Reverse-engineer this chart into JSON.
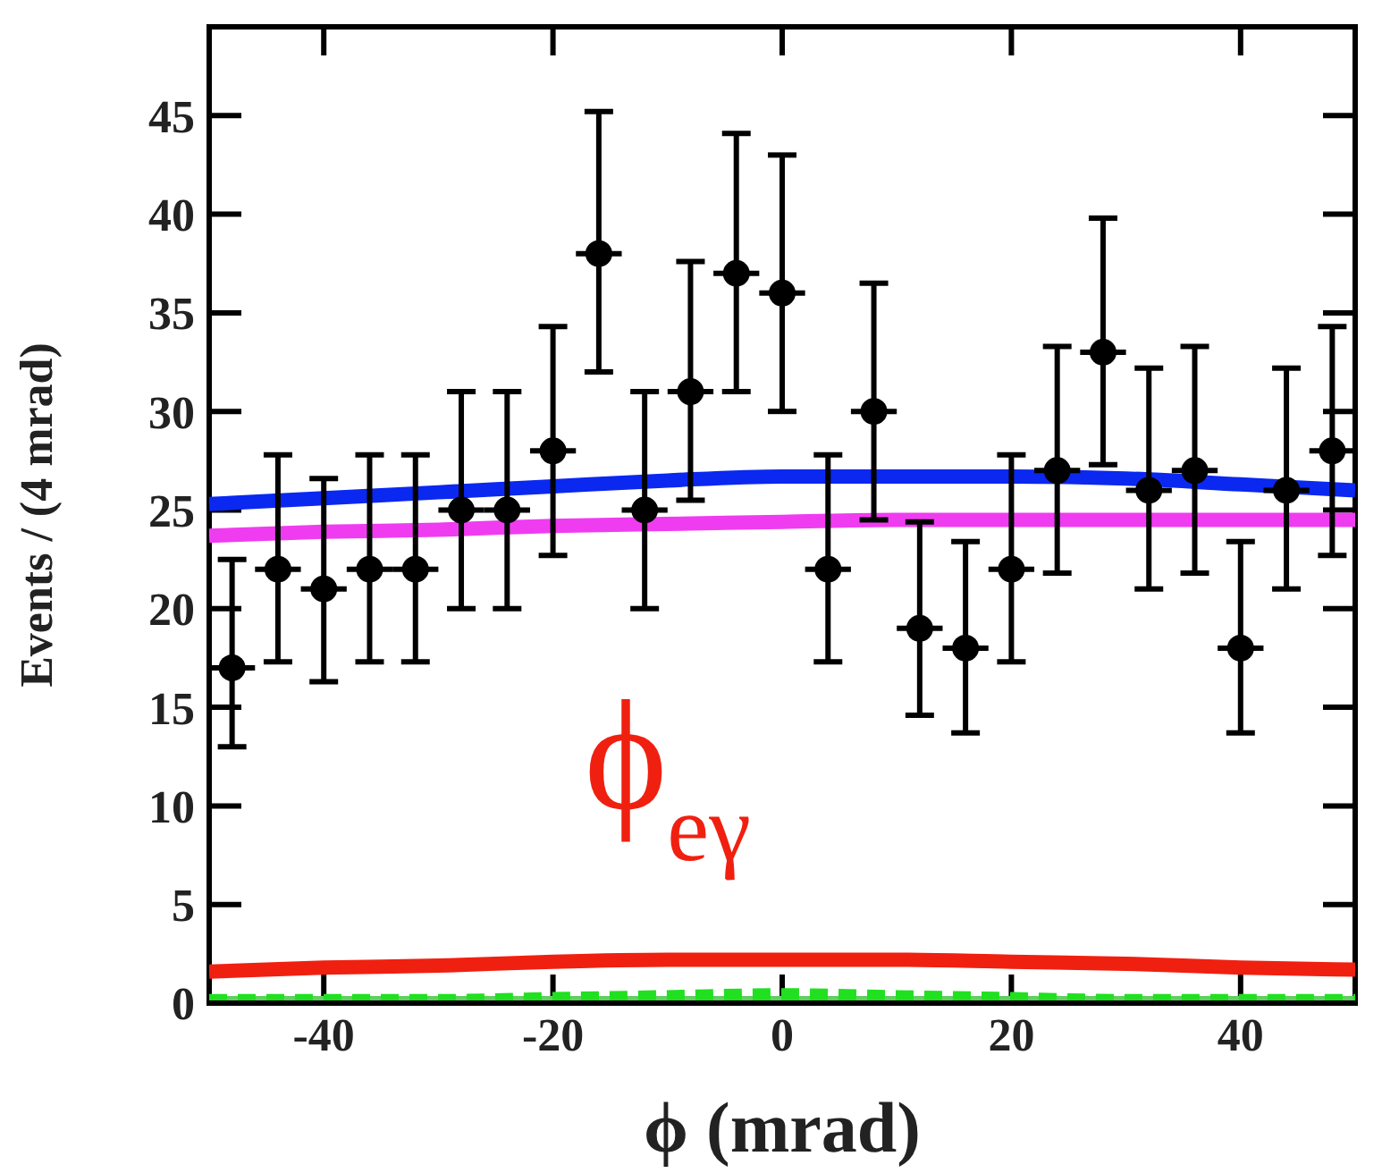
{
  "chart_data": {
    "type": "scatter",
    "xlabel": "ϕ (mrad)",
    "ylabel": "Events / (4 mrad)",
    "xlim": [
      -50,
      50
    ],
    "xticks": [
      -40,
      -20,
      0,
      20,
      40
    ],
    "ylim": [
      0,
      49.5
    ],
    "yticks": [
      0,
      5,
      10,
      15,
      20,
      25,
      30,
      35,
      40,
      45
    ],
    "annotations": [
      "ϕ$_{eγ}$"
    ],
    "series": [
      {
        "type": "line",
        "color": "#0a28f0",
        "x": [
          -50,
          -40,
          -30,
          -20,
          -10,
          0,
          10,
          20,
          30,
          40,
          50
        ],
        "values": [
          25.3,
          25.6,
          25.9,
          26.2,
          26.5,
          26.7,
          26.7,
          26.7,
          26.6,
          26.3,
          26.0
        ]
      },
      {
        "type": "line",
        "color": "#f03cf0",
        "x": [
          -50,
          -40,
          -30,
          -20,
          -10,
          0,
          10,
          20,
          30,
          40,
          50
        ],
        "values": [
          23.7,
          23.9,
          24.0,
          24.2,
          24.3,
          24.4,
          24.5,
          24.5,
          24.5,
          24.5,
          24.5
        ]
      },
      {
        "type": "line",
        "color": "#f02010",
        "x": [
          -50,
          -40,
          -30,
          -20,
          -10,
          0,
          10,
          20,
          30,
          40,
          50
        ],
        "values": [
          1.6,
          1.8,
          1.9,
          2.1,
          2.2,
          2.2,
          2.2,
          2.1,
          2.0,
          1.8,
          1.7
        ]
      },
      {
        "type": "line",
        "color": "#60d060",
        "x": [
          -50,
          -40,
          -30,
          -20,
          -10,
          0,
          10,
          20,
          30,
          40,
          50
        ],
        "values": [
          0,
          0,
          0,
          0,
          0,
          0,
          0,
          0,
          0,
          0,
          0
        ]
      },
      {
        "type": "line",
        "color": "#20e020",
        "line_style": "dashed",
        "x": [
          -50,
          -30,
          -20,
          -10,
          0,
          10,
          20,
          30,
          50
        ],
        "values": [
          0.1,
          0.1,
          0.2,
          0.3,
          0.4,
          0.3,
          0.2,
          0.1,
          0.1
        ]
      },
      {
        "marker": "circle",
        "color": "#000000",
        "x": [
          -48,
          -44,
          -40,
          -36,
          -32,
          -28,
          -24,
          -20,
          -16,
          -12,
          -8,
          -4,
          0,
          4,
          8,
          12,
          16,
          20,
          24,
          28,
          32,
          36,
          40,
          44,
          48
        ],
        "values": [
          17,
          22,
          21,
          22,
          22,
          25,
          25,
          28,
          38,
          25,
          31,
          37,
          36,
          22,
          30,
          19,
          18,
          22,
          27,
          33,
          26,
          27,
          18,
          26,
          28
        ],
        "xerrors": [
          2,
          2,
          2,
          2,
          2,
          2,
          2,
          2,
          2,
          2,
          2,
          2,
          2,
          2,
          2,
          2,
          2,
          2,
          2,
          2,
          2,
          2,
          2,
          2,
          2
        ],
        "errors": [
          [
            13,
            22.5
          ],
          [
            17.3,
            27.8
          ],
          [
            16.3,
            26.6
          ],
          [
            17.3,
            27.8
          ],
          [
            17.3,
            27.8
          ],
          [
            20,
            31
          ],
          [
            20,
            31
          ],
          [
            22.7,
            34.3
          ],
          [
            32,
            45.2
          ],
          [
            20,
            31
          ],
          [
            25.5,
            37.6
          ],
          [
            31,
            44.1
          ],
          [
            30,
            43
          ],
          [
            17.3,
            27.8
          ],
          [
            24.5,
            36.5
          ],
          [
            14.6,
            24.4
          ],
          [
            13.7,
            23.4
          ],
          [
            17.3,
            27.8
          ],
          [
            21.8,
            33.3
          ],
          [
            27.3,
            39.8
          ],
          [
            21,
            32.2
          ],
          [
            21.8,
            33.3
          ],
          [
            13.7,
            23.4
          ],
          [
            21,
            32.2
          ],
          [
            22.7,
            34.3
          ]
        ]
      }
    ]
  }
}
